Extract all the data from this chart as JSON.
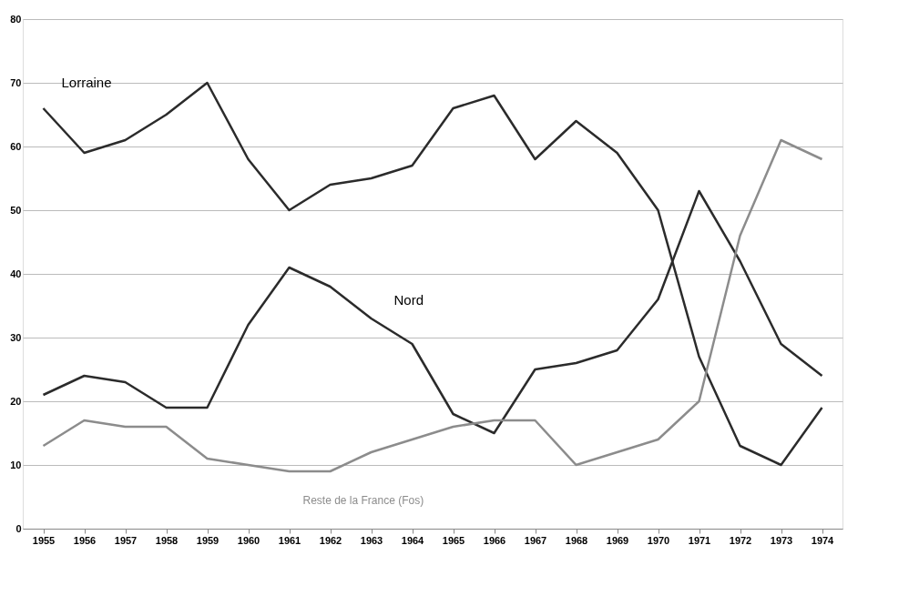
{
  "chart_data": {
    "type": "line",
    "categories": [
      "1955",
      "1956",
      "1957",
      "1958",
      "1959",
      "1960",
      "1961",
      "1962",
      "1963",
      "1964",
      "1965",
      "1966",
      "1967",
      "1968",
      "1969",
      "1970",
      "1971",
      "1972",
      "1973",
      "1974"
    ],
    "series": [
      {
        "name": "Lorraine",
        "color": "#2b2b2b",
        "values": [
          66,
          59,
          61,
          65,
          70,
          58,
          50,
          54,
          55,
          57,
          66,
          68,
          58,
          64,
          59,
          50,
          27,
          13,
          10,
          19
        ]
      },
      {
        "name": "Nord",
        "color": "#2b2b2b",
        "values": [
          21,
          24,
          23,
          19,
          19,
          32,
          41,
          38,
          33,
          29,
          18,
          15,
          25,
          26,
          28,
          36,
          53,
          42,
          29,
          24
        ]
      },
      {
        "name": "Reste de la France (Fos)",
        "color": "#8c8c8c",
        "values": [
          13,
          17,
          16,
          16,
          11,
          10,
          9,
          9,
          12,
          14,
          16,
          17,
          17,
          10,
          12,
          14,
          20,
          46,
          61,
          58
        ]
      }
    ],
    "ylim": [
      0,
      80
    ],
    "yticks": [
      0,
      10,
      20,
      30,
      40,
      50,
      60,
      70,
      80
    ],
    "grid": "y",
    "marker": "none",
    "line_style": "solid"
  }
}
